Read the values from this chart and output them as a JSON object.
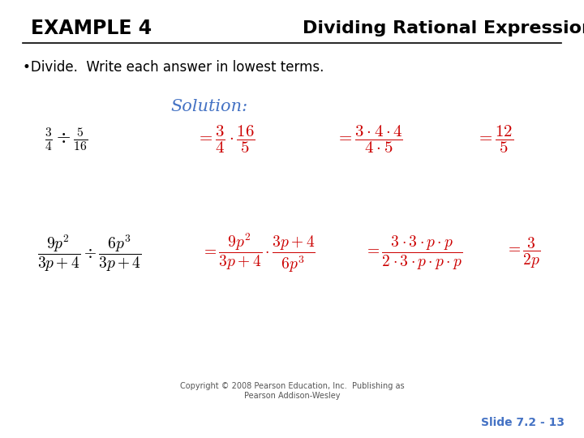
{
  "title_left": "EXAMPLE 4",
  "title_right": "Dividing Rational Expressions",
  "bullet": "•Divide.  Write each answer in lowest terms.",
  "solution_label": "Solution:",
  "background_color": "#ffffff",
  "title_left_color": "#000000",
  "title_right_color": "#000000",
  "solution_color": "#4472c4",
  "black_color": "#000000",
  "red_color": "#cc0000",
  "slide_label": "Slide 7.2 - 13",
  "copyright": "Copyright © 2008 Pearson Education, Inc.  Publishing as\nPearson Addison-Wesley",
  "fig_width": 7.2,
  "fig_height": 5.4,
  "dpi": 100
}
